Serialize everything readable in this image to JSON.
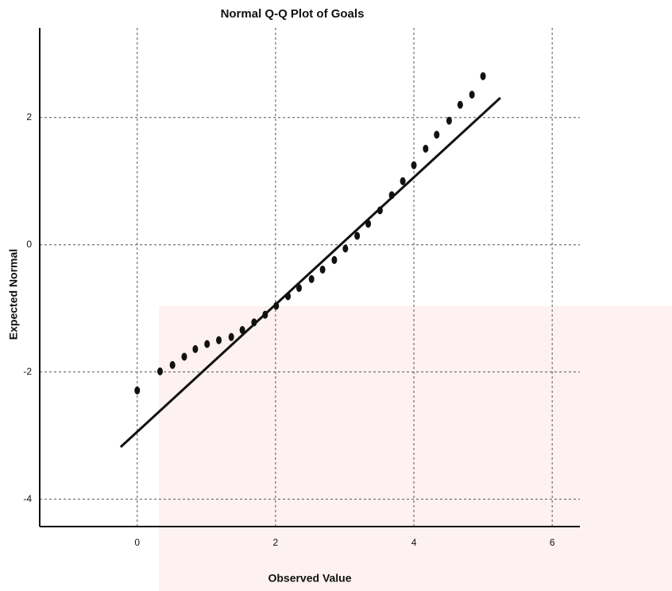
{
  "chart_data": {
    "type": "scatter",
    "title": "Normal Q-Q Plot of Goals",
    "x_label": "Observed Value",
    "y_label": "Expected Normal",
    "x": [
      0,
      0.33,
      0.51,
      0.68,
      0.84,
      1.01,
      1.18,
      1.36,
      1.52,
      1.69,
      1.85,
      2.01,
      2.18,
      2.34,
      2.52,
      2.68,
      2.85,
      3.01,
      3.18,
      3.34,
      3.51,
      3.68,
      3.84,
      4.0,
      4.17,
      4.33,
      4.51,
      4.67,
      4.84,
      5.0
    ],
    "values": [
      -2.29,
      -1.99,
      -1.89,
      -1.76,
      -1.64,
      -1.56,
      -1.5,
      -1.45,
      -1.34,
      -1.22,
      -1.1,
      -0.96,
      -0.81,
      -0.68,
      -0.54,
      -0.39,
      -0.24,
      -0.06,
      0.14,
      0.33,
      0.54,
      0.78,
      1.0,
      1.25,
      1.51,
      1.73,
      1.95,
      2.2,
      2.36,
      2.65
    ],
    "color": "#111111",
    "line": {
      "x": [
        -0.24,
        5.25
      ],
      "y": [
        -3.18,
        2.31
      ],
      "color": "#111111"
    },
    "xlim": [
      -1.41,
      6.4
    ],
    "ylim": [
      -4.43,
      3.41
    ],
    "xticks": [
      0,
      2,
      4,
      6
    ],
    "yticks": [
      -4,
      -2,
      0,
      2
    ],
    "grid": true
  }
}
